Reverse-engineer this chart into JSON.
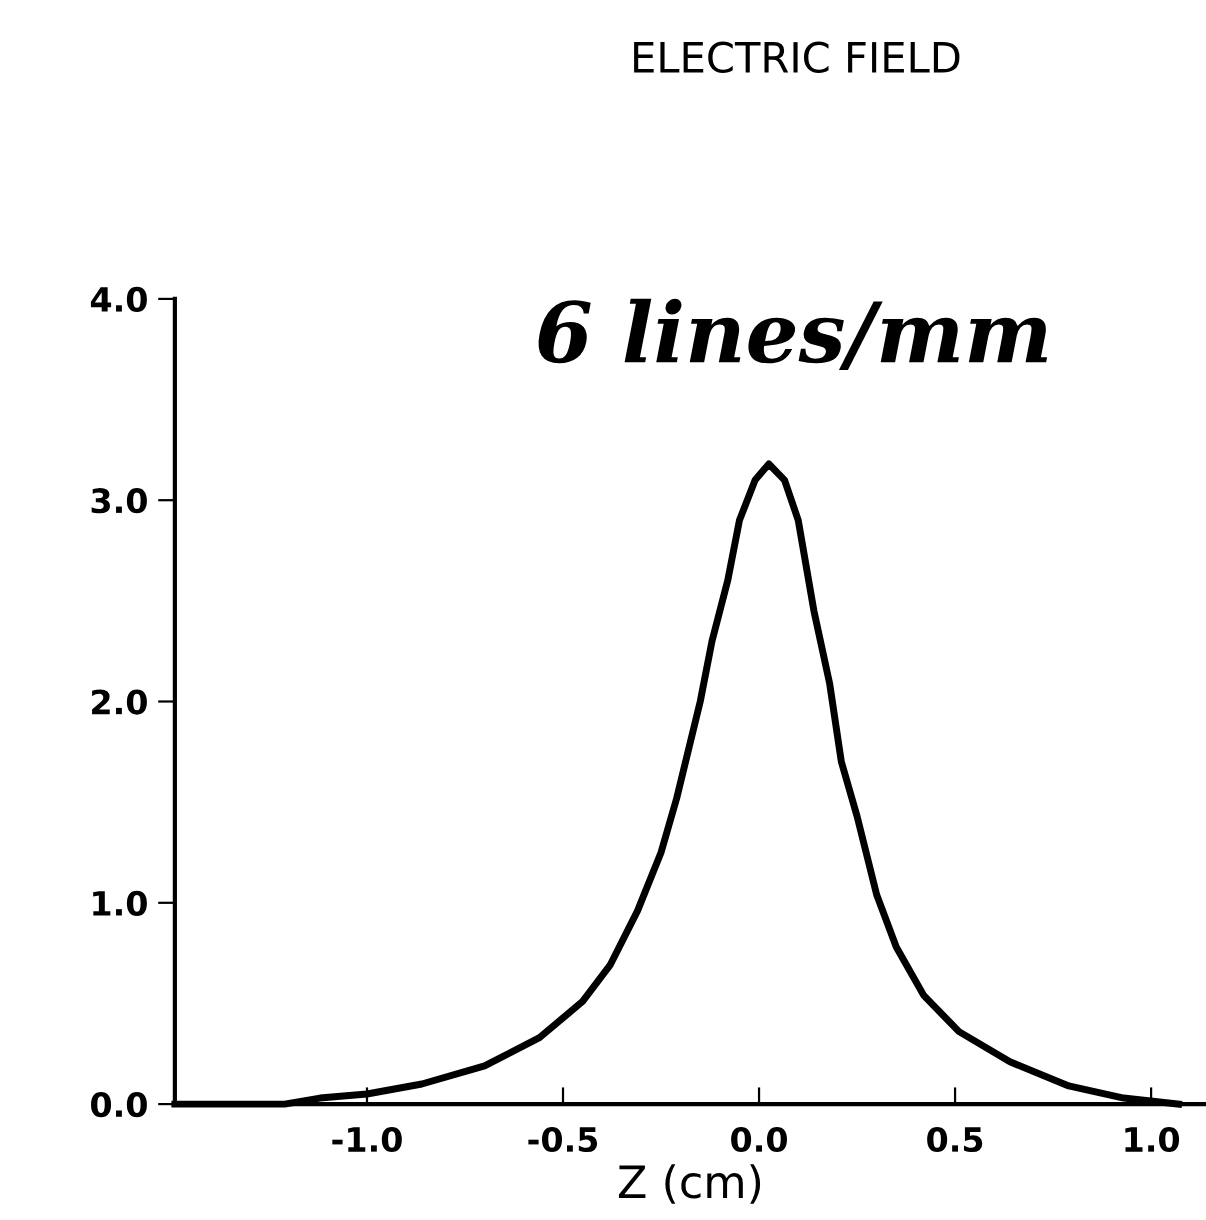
{
  "chart_data": {
    "type": "line",
    "title": "ELECTRIC FIELD",
    "subtitle": "6 lines/mm",
    "xlabel": "Z (cm)",
    "x": [
      -1.49,
      -1.4,
      -1.21,
      -1.12,
      -1.0,
      -0.86,
      -0.7,
      -0.56,
      -0.45,
      -0.38,
      -0.31,
      -0.25,
      -0.21,
      -0.15,
      -0.12,
      -0.08,
      -0.05,
      -0.01,
      0.025,
      0.065,
      0.1,
      0.14,
      0.18,
      0.21,
      0.25,
      0.3,
      0.35,
      0.42,
      0.51,
      0.64,
      0.79,
      0.93,
      1.07
    ],
    "series": [
      {
        "color": "#000000",
        "values": [
          0.0,
          0.0,
          0.0,
          0.03,
          0.05,
          0.1,
          0.19,
          0.33,
          0.51,
          0.69,
          0.96,
          1.25,
          1.52,
          2.0,
          2.3,
          2.6,
          2.9,
          3.1,
          3.18,
          3.1,
          2.9,
          2.45,
          2.09,
          1.7,
          1.43,
          1.04,
          0.78,
          0.54,
          0.36,
          0.21,
          0.09,
          0.03,
          0.0
        ]
      }
    ],
    "xlim": [
      -1.49,
      1.14
    ],
    "ylim": [
      0,
      4.0
    ],
    "xticks": [
      {
        "value": -1.0,
        "label": "-1.0"
      },
      {
        "value": -0.5,
        "label": "-0.5"
      },
      {
        "value": 0.0,
        "label": "0.0"
      },
      {
        "value": 0.5,
        "label": "0.5"
      },
      {
        "value": 1.0,
        "label": "1.0"
      }
    ],
    "yticks": [
      {
        "value": 0.0,
        "label": "0.0"
      },
      {
        "value": 1.0,
        "label": "1.0"
      },
      {
        "value": 2.0,
        "label": "2.0"
      },
      {
        "value": 3.0,
        "label": "3.0"
      },
      {
        "value": 4.0,
        "label": "4.0"
      }
    ],
    "grid": false,
    "legend": false,
    "marker": "none",
    "line_style": "solid"
  }
}
